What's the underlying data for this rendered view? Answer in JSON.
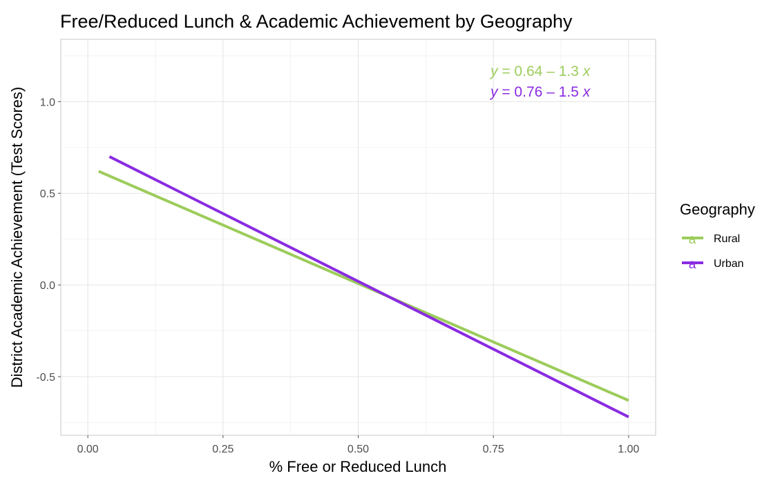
{
  "chart_data": {
    "type": "line",
    "title": "Free/Reduced Lunch & Academic Achievement by Geography",
    "xlabel": "% Free or Reduced Lunch",
    "ylabel": "District Academic Achievement (Test Scores)",
    "xlim": [
      -0.05,
      1.05
    ],
    "ylim": [
      -0.82,
      1.34
    ],
    "x_ticks": [
      0.0,
      0.25,
      0.5,
      0.75,
      1.0
    ],
    "x_tick_labels": [
      "0.00",
      "0.25",
      "0.50",
      "0.75",
      "1.00"
    ],
    "y_ticks": [
      -0.5,
      0.0,
      0.5,
      1.0
    ],
    "y_tick_labels": [
      "-0.5",
      "0.0",
      "0.5",
      "1.0"
    ],
    "grid": true,
    "legend": {
      "title": "Geography",
      "position": "right",
      "key_letter": "a"
    },
    "series": [
      {
        "name": "Rural",
        "color": "#9ccc5a",
        "x": [
          0.02,
          1.0
        ],
        "y": [
          0.62,
          -0.63
        ],
        "equation": {
          "y": "y",
          "rest": " = 0.64 – 1.3 ",
          "x": "x"
        }
      },
      {
        "name": "Urban",
        "color": "#8a2be2",
        "x": [
          0.04,
          1.0
        ],
        "y": [
          0.7,
          -0.72
        ],
        "equation": {
          "y": "y",
          "rest": " = 0.76 – 1.5 ",
          "x": "x"
        }
      }
    ]
  }
}
